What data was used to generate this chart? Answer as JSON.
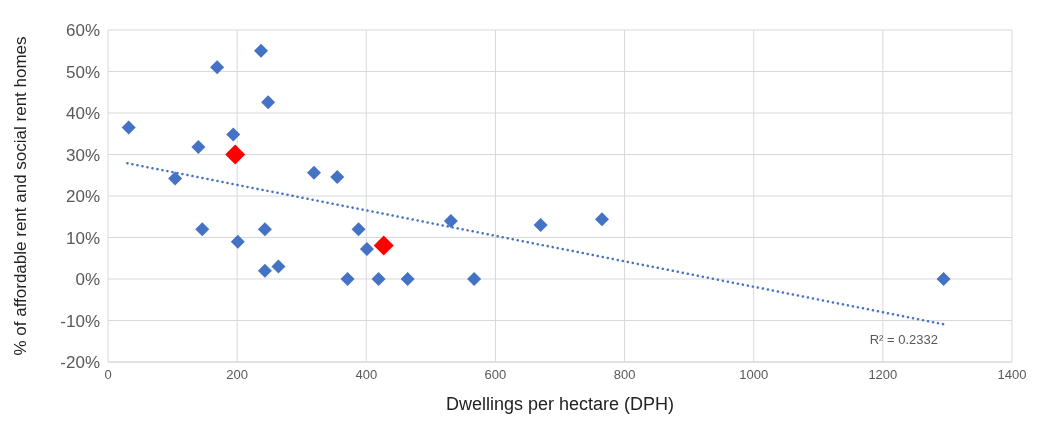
{
  "chart_data": {
    "type": "scatter",
    "xlabel": "Dwellings per hectare (DPH)",
    "ylabel": "% of affordable rent and social rent homes",
    "xlim": [
      0,
      1400
    ],
    "xticks": [
      0,
      200,
      400,
      600,
      800,
      1000,
      1200,
      1400
    ],
    "ylim": [
      -20,
      60
    ],
    "yticks": [
      {
        "value": -20,
        "label": "-20%"
      },
      {
        "value": -10,
        "label": "-10%"
      },
      {
        "value": 0,
        "label": "0%"
      },
      {
        "value": 10,
        "label": "10%"
      },
      {
        "value": 20,
        "label": "20%"
      },
      {
        "value": 30,
        "label": "30%"
      },
      {
        "value": 40,
        "label": "40%"
      },
      {
        "value": 50,
        "label": "50%"
      },
      {
        "value": 60,
        "label": "60%"
      }
    ],
    "grid": true,
    "marker": "diamond",
    "series": [
      {
        "color": "#4472c4",
        "x": [
          32,
          169,
          237,
          248,
          194,
          140,
          319,
          355,
          104,
          146,
          243,
          201,
          243,
          264,
          371,
          388,
          401,
          419,
          464,
          531,
          567,
          670,
          765,
          1294
        ],
        "values": [
          36.5,
          51,
          55,
          42.6,
          34.8,
          31.8,
          25.6,
          24.6,
          24.2,
          12,
          12,
          9,
          2,
          3,
          0,
          12,
          7.2,
          0,
          0,
          14,
          0,
          13,
          14.4,
          0
        ]
      },
      {
        "color": "#ff0000",
        "x": [
          197,
          427
        ],
        "values": [
          30,
          8.1
        ]
      },
      {
        "type": "line",
        "line_style": "dotted",
        "marker": "none",
        "color": "#4472c4",
        "x": [
          30,
          1294
        ],
        "values": [
          27.9,
          -10.9
        ]
      }
    ],
    "annotations": [
      "R² = 0.2332"
    ]
  }
}
